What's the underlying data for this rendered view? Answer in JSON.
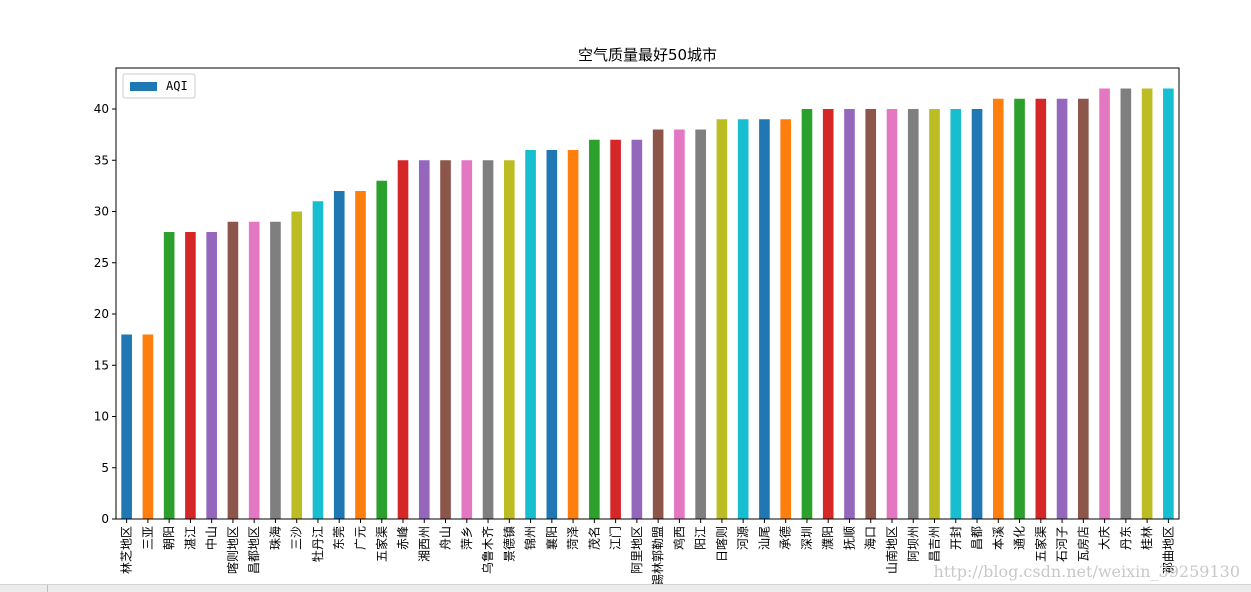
{
  "chart_data": {
    "type": "bar",
    "title": "空气质量最好50城市",
    "legend": {
      "label": "AQI",
      "placement": "top-left"
    },
    "ylim": [
      0,
      44
    ],
    "yticks": [
      0,
      5,
      10,
      15,
      20,
      25,
      30,
      35,
      40
    ],
    "categories": [
      "林芝地区",
      "三亚",
      "朝阳",
      "湛江",
      "中山",
      "喀则地区",
      "昌都地区",
      "珠海",
      "三沙",
      "牡丹江",
      "东莞",
      "广元",
      "五家渠",
      "赤峰",
      "湘西州",
      "舟山",
      "萍乡",
      "乌鲁木齐",
      "景德镇",
      "锦州",
      "襄阳",
      "菏泽",
      "茂名",
      "江门",
      "阿里地区",
      "锡林郭勒盟",
      "鸡西",
      "阳江",
      "日喀则",
      "河源",
      "汕尾",
      "承德",
      "深圳",
      "濮阳",
      "抚顺",
      "海口",
      "山南地区",
      "阿坝州",
      "昌吉州",
      "开封",
      "昌都",
      "本溪",
      "通化",
      "五家渠",
      "石河子",
      "瓦房店",
      "大庆",
      "丹东",
      "桂林",
      "那曲地区"
    ],
    "values": [
      18,
      18,
      28,
      28,
      28,
      29,
      29,
      29,
      30,
      31,
      32,
      32,
      33,
      35,
      35,
      35,
      35,
      35,
      35,
      36,
      36,
      36,
      37,
      37,
      37,
      38,
      38,
      38,
      39,
      39,
      39,
      39,
      40,
      40,
      40,
      40,
      40,
      40,
      40,
      40,
      40,
      41,
      41,
      41,
      41,
      41,
      42,
      42,
      42,
      42
    ],
    "colors": [
      "#1f77b4",
      "#ff7f0e",
      "#2ca02c",
      "#d62728",
      "#9467bd",
      "#8c564b",
      "#e377c2",
      "#7f7f7f",
      "#bcbd22",
      "#17becf"
    ]
  },
  "watermark": "http://blog.csdn.net/weixin_39259130"
}
